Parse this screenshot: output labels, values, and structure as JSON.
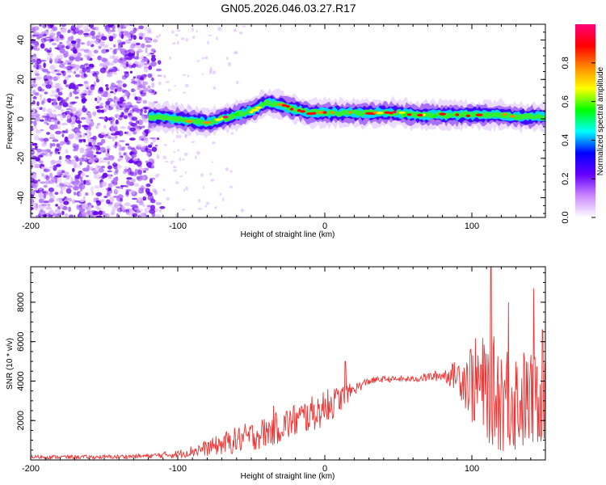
{
  "title": "GN05.2026.046.03.27.R17",
  "chart_data": [
    {
      "type": "heatmap",
      "name": "spectrogram",
      "xlabel": "Height of straight line (km)",
      "ylabel": "Frequency (Hz)",
      "xlim": [
        -200,
        150
      ],
      "ylim": [
        -50,
        48
      ],
      "xticks": [
        -200,
        -100,
        0,
        100
      ],
      "yticks": [
        -40,
        -20,
        0,
        20,
        40
      ],
      "xtick_labels": [
        "-200",
        "-100",
        "0",
        "100"
      ],
      "ytick_labels": [
        "-40",
        "-20",
        "0",
        "20",
        "40"
      ],
      "noise_region_x": [
        -200,
        -110
      ],
      "ridge": {
        "x": [
          -120,
          -110,
          -100,
          -90,
          -80,
          -70,
          -60,
          -50,
          -40,
          -30,
          -20,
          -10,
          0,
          10,
          20,
          30,
          40,
          50,
          60,
          70,
          80,
          90,
          100,
          110,
          120,
          130,
          140,
          150
        ],
        "y": [
          1,
          1,
          0,
          -1,
          -2,
          0,
          2,
          4,
          8,
          7,
          5,
          3,
          3,
          3,
          3,
          3,
          3,
          3,
          2,
          2,
          2,
          2,
          2,
          2,
          2,
          1,
          1,
          1
        ]
      },
      "colorbar": {
        "label": "Normalized spectral amplitude",
        "range": [
          0,
          1
        ],
        "ticks": [
          0.0,
          0.2,
          0.4,
          0.6,
          0.8
        ],
        "tick_labels": [
          "0.0",
          "0.2",
          "0.4",
          "0.6",
          "0.8"
        ],
        "colors": [
          "#ffffff",
          "#cc88ff",
          "#6600ff",
          "#0000ff",
          "#00ffff",
          "#00ff00",
          "#ffff00",
          "#ff8800",
          "#ff0000",
          "#ff0077"
        ]
      }
    },
    {
      "type": "line",
      "name": "snr",
      "xlabel": "Height of straight line (km)",
      "ylabel": "SNR (10 * v/v)",
      "xlim": [
        -200,
        150
      ],
      "ylim": [
        0,
        9800
      ],
      "xticks": [
        -200,
        -100,
        0,
        100
      ],
      "yticks": [
        2000,
        4000,
        6000,
        8000
      ],
      "xtick_labels": [
        "-200",
        "-100",
        "0",
        "100"
      ],
      "ytick_labels": [
        "2000",
        "4000",
        "6000",
        "8000"
      ],
      "color": "#ee3333",
      "envelope": {
        "x": [
          -200,
          -150,
          -120,
          -100,
          -80,
          -60,
          -40,
          -20,
          0,
          10,
          20,
          30,
          40,
          60,
          80,
          90,
          100,
          110,
          120,
          130,
          140,
          150
        ],
        "mean": [
          150,
          150,
          200,
          300,
          600,
          1000,
          1400,
          2000,
          2600,
          3100,
          3600,
          4000,
          4100,
          4100,
          4300,
          4300,
          4000,
          3600,
          3300,
          3100,
          3000,
          3000
        ],
        "amp": [
          100,
          100,
          120,
          200,
          400,
          700,
          800,
          900,
          900,
          700,
          300,
          200,
          150,
          150,
          300,
          800,
          2200,
          2700,
          3000,
          2800,
          2500,
          2300
        ]
      },
      "peaks": [
        {
          "x": -35,
          "y": 2750
        },
        {
          "x": 2,
          "y": 3600
        },
        {
          "x": 14,
          "y": 5000
        },
        {
          "x": 113,
          "y": 9800
        },
        {
          "x": 125,
          "y": 8000
        },
        {
          "x": 142,
          "y": 8700
        },
        {
          "x": 148,
          "y": 6600
        }
      ]
    }
  ]
}
